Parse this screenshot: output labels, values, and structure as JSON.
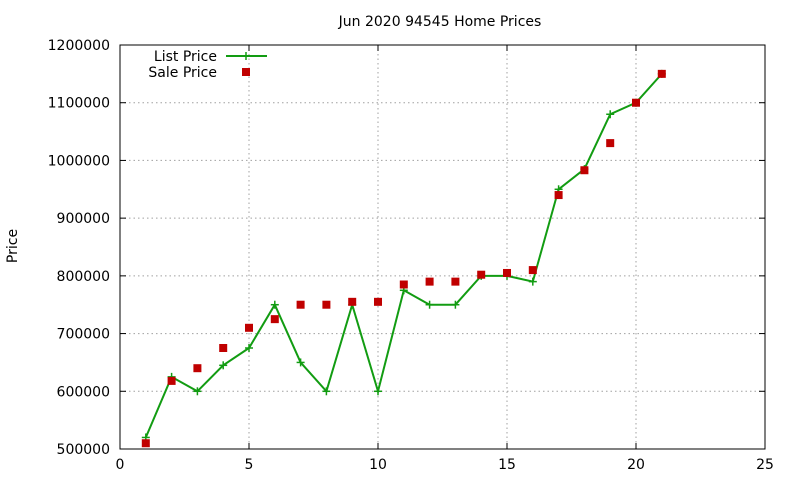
{
  "chart_data": {
    "type": "line",
    "title": "Jun 2020 94545 Home Prices",
    "xlabel": "",
    "ylabel": "Price",
    "xlim": [
      0,
      25
    ],
    "ylim": [
      500000,
      1200000
    ],
    "x_ticks": [
      0,
      5,
      10,
      15,
      20,
      25
    ],
    "y_ticks": [
      500000,
      600000,
      700000,
      800000,
      900000,
      1000000,
      1100000,
      1200000
    ],
    "grid": true,
    "legend": "top-left",
    "series": [
      {
        "name": "List Price",
        "style": "line+cross",
        "color": "#129c12",
        "points": [
          [
            1,
            520000
          ],
          [
            2,
            625000
          ],
          [
            3,
            600000
          ],
          [
            4,
            645000
          ],
          [
            5,
            675000
          ],
          [
            6,
            750000
          ],
          [
            7,
            650000
          ],
          [
            8,
            600000
          ],
          [
            9,
            750000
          ],
          [
            10,
            600000
          ],
          [
            11,
            775000
          ],
          [
            12,
            750000
          ],
          [
            13,
            750000
          ],
          [
            14,
            800000
          ],
          [
            15,
            800000
          ],
          [
            16,
            790000
          ],
          [
            17,
            950000
          ],
          [
            18,
            985000
          ],
          [
            19,
            1080000
          ],
          [
            20,
            1100000
          ],
          [
            21,
            1150000
          ]
        ]
      },
      {
        "name": "Sale Price",
        "style": "square",
        "color": "#c00000",
        "points": [
          [
            1,
            510000
          ],
          [
            2,
            618000
          ],
          [
            3,
            640000
          ],
          [
            4,
            675000
          ],
          [
            5,
            710000
          ],
          [
            6,
            725000
          ],
          [
            7,
            750000
          ],
          [
            8,
            750000
          ],
          [
            9,
            755000
          ],
          [
            10,
            755000
          ],
          [
            11,
            785000
          ],
          [
            12,
            790000
          ],
          [
            13,
            790000
          ],
          [
            14,
            802000
          ],
          [
            15,
            805000
          ],
          [
            16,
            810000
          ],
          [
            17,
            940000
          ],
          [
            18,
            983000
          ],
          [
            19,
            1030000
          ],
          [
            20,
            1100000
          ],
          [
            21,
            1150000
          ]
        ]
      }
    ]
  }
}
